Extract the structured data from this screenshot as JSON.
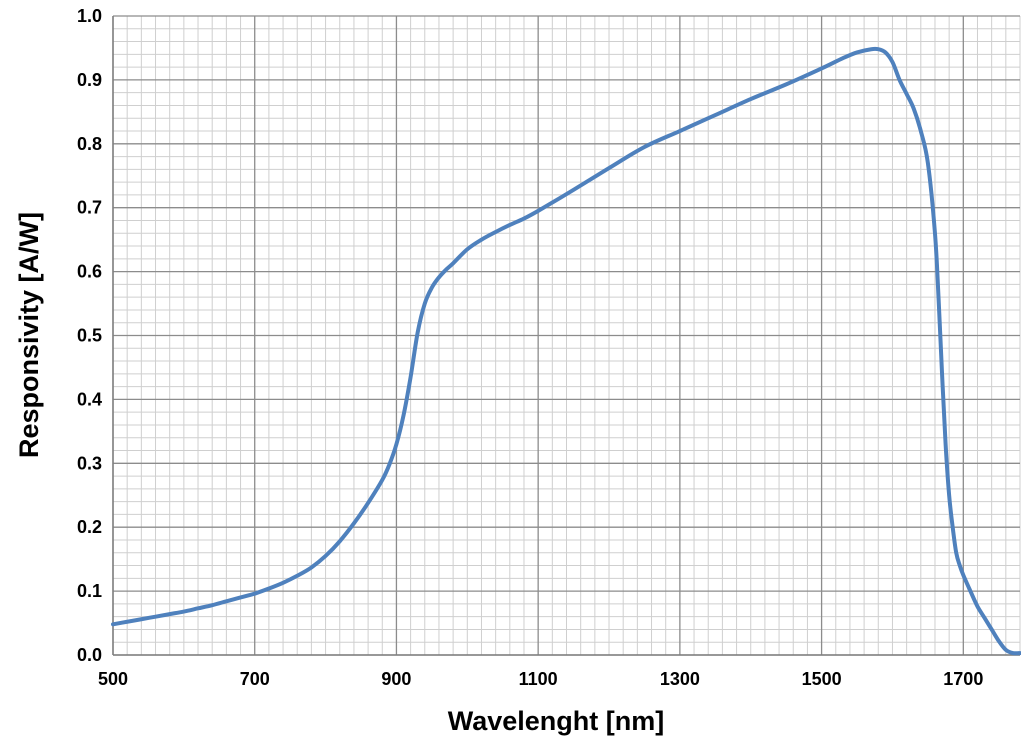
{
  "chart_data": {
    "type": "line",
    "xlabel": "Wavelenght [nm]",
    "ylabel": "Responsivity [A/W]",
    "xlim": [
      500,
      1780
    ],
    "ylim": [
      0,
      1.0
    ],
    "x_ticks": [
      500,
      700,
      900,
      1100,
      1300,
      1500,
      1700
    ],
    "x_tick_labels": [
      "500",
      "700",
      "900",
      "1100",
      "1300",
      "1500",
      "1700"
    ],
    "y_ticks": [
      0,
      0.1,
      0.2,
      0.3,
      0.4,
      0.5,
      0.6,
      0.7,
      0.8,
      0.9,
      1.0
    ],
    "y_tick_labels": [
      "0.0",
      "0.1",
      "0.2",
      "0.3",
      "0.4",
      "0.5",
      "0.6",
      "0.7",
      "0.8",
      "0.9",
      "1.0"
    ],
    "x_major_step": 200,
    "x_minor_step": 20,
    "y_minor_step": 0.02,
    "grid": true,
    "legend": "none",
    "colors": {
      "line": "#4F81BD",
      "grid_major": "#8c8c8c",
      "grid_minor": "#cfcfcf"
    },
    "series": [
      {
        "x": [
          500,
          520,
          540,
          560,
          580,
          600,
          620,
          640,
          660,
          680,
          700,
          720,
          740,
          760,
          780,
          800,
          820,
          840,
          860,
          880,
          890,
          900,
          910,
          920,
          930,
          940,
          950,
          960,
          970,
          980,
          1000,
          1020,
          1040,
          1060,
          1080,
          1100,
          1150,
          1200,
          1250,
          1300,
          1350,
          1400,
          1450,
          1500,
          1530,
          1550,
          1570,
          1580,
          1590,
          1600,
          1610,
          1620,
          1630,
          1640,
          1650,
          1660,
          1665,
          1670,
          1675,
          1680,
          1685,
          1690,
          1695,
          1700,
          1710,
          1720,
          1730,
          1740,
          1750,
          1760,
          1770,
          1780
        ],
        "y": [
          0.048,
          0.052,
          0.056,
          0.06,
          0.064,
          0.068,
          0.073,
          0.078,
          0.084,
          0.09,
          0.096,
          0.104,
          0.113,
          0.124,
          0.137,
          0.155,
          0.178,
          0.206,
          0.238,
          0.274,
          0.298,
          0.33,
          0.375,
          0.435,
          0.505,
          0.55,
          0.575,
          0.591,
          0.603,
          0.613,
          0.635,
          0.65,
          0.662,
          0.673,
          0.683,
          0.695,
          0.728,
          0.762,
          0.795,
          0.82,
          0.845,
          0.87,
          0.893,
          0.918,
          0.934,
          0.943,
          0.948,
          0.948,
          0.943,
          0.928,
          0.9,
          0.878,
          0.855,
          0.82,
          0.77,
          0.66,
          0.56,
          0.44,
          0.33,
          0.25,
          0.2,
          0.16,
          0.14,
          0.125,
          0.1,
          0.076,
          0.058,
          0.04,
          0.022,
          0.008,
          0.003,
          0.003
        ]
      }
    ]
  }
}
